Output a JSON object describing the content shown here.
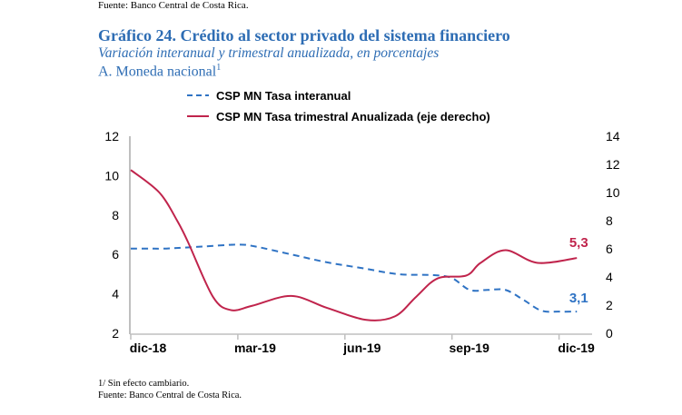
{
  "header": {
    "top_cut_text": "Fuente: Banco Central de Costa Rica.",
    "title_number": "Gráfico 24.",
    "title_text": "Crédito al sector privado del sistema financiero",
    "subtitle": "Variación interanual y trimestral anualizada, en porcentajes",
    "panel_label": "A.  Moneda nacional",
    "panel_footnote_mark": "1"
  },
  "footer": {
    "note": "1/ Sin efecto cambiario.",
    "source": "Fuente: Banco Central de Costa Rica."
  },
  "chart_data": {
    "type": "line",
    "x_unit": "months since dic-18",
    "x_ticks": [
      0,
      3,
      6,
      9,
      12
    ],
    "x_tick_labels": [
      "dic-18",
      "mar-19",
      "jun-19",
      "sep-19",
      "dic-19"
    ],
    "y_left": {
      "range": [
        2,
        12
      ],
      "ticks": [
        12,
        10,
        8,
        6,
        4,
        2
      ]
    },
    "y_right": {
      "range": [
        0,
        14
      ],
      "ticks": [
        14,
        12,
        10,
        8,
        6,
        4,
        2,
        0
      ]
    },
    "legend_position": "top",
    "grid": false,
    "colors": {
      "interanual": "#2f73c4",
      "trimestral": "#c0244c"
    },
    "series": [
      {
        "name": "CSP MN Tasa interanual",
        "axis": "left",
        "style": "dashed",
        "x": [
          0,
          0.5,
          1,
          2,
          3,
          3.5,
          4.5,
          5.5,
          6.5,
          7.5,
          8.5,
          9,
          9.5,
          10,
          10.5,
          11,
          11.5,
          12,
          12.5
        ],
        "y": [
          6.3,
          6.3,
          6.3,
          6.4,
          6.5,
          6.4,
          6.0,
          5.6,
          5.3,
          5.0,
          4.95,
          4.8,
          4.2,
          4.2,
          4.2,
          3.7,
          3.15,
          3.1,
          3.1
        ],
        "end_label": "3,1"
      },
      {
        "name": "CSP MN Tasa trimestral Anualizada (eje derecho)",
        "axis": "right",
        "style": "solid",
        "x": [
          0,
          0.8,
          1.3,
          1.6,
          2.3,
          2.8,
          3.4,
          4.5,
          5.5,
          6.6,
          7.4,
          8.0,
          8.6,
          9.4,
          9.8,
          10.5,
          11.4,
          12.5
        ],
        "y": [
          11.6,
          10.0,
          8.0,
          6.5,
          2.6,
          1.65,
          1.95,
          2.65,
          1.8,
          0.95,
          1.2,
          2.6,
          3.9,
          4.1,
          5.0,
          5.9,
          5.0,
          5.35
        ],
        "end_label": "5,3"
      }
    ]
  }
}
